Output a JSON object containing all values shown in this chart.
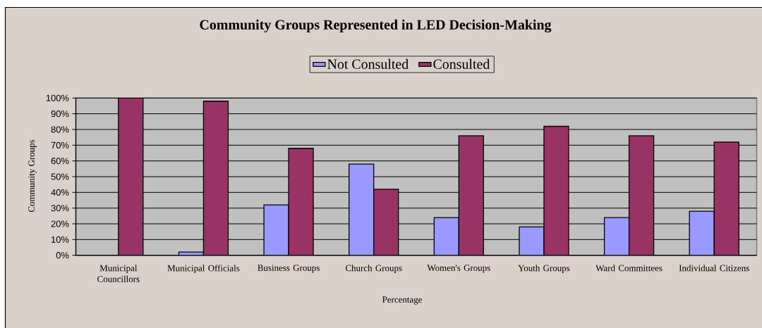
{
  "chart_data": {
    "type": "bar",
    "title": "Community Groups Represented in LED Decision-Making",
    "xlabel": "Percentage",
    "ylabel": "Community Groups",
    "categories": [
      "Municipal Councillors",
      "Municipal Officials",
      "Business Groups",
      "Church Groups",
      "Women's Groups",
      "Youth Groups",
      "Ward Committees",
      "Individual Citizens"
    ],
    "series": [
      {
        "name": "Not Consulted",
        "color": "#9999ff",
        "values": [
          0,
          2,
          32,
          58,
          24,
          18,
          24,
          28
        ]
      },
      {
        "name": "Consulted",
        "color": "#993366",
        "values": [
          100,
          98,
          68,
          42,
          76,
          82,
          76,
          72
        ]
      }
    ],
    "ylim": [
      0,
      100
    ],
    "yticks": [
      {
        "value": 0,
        "label": "0%"
      },
      {
        "value": 10,
        "label": "10%"
      },
      {
        "value": 20,
        "label": "20%"
      },
      {
        "value": 30,
        "label": "30%"
      },
      {
        "value": 40,
        "label": "40%"
      },
      {
        "value": 50,
        "label": "50%"
      },
      {
        "value": 60,
        "label": "60%"
      },
      {
        "value": 70,
        "label": "70%"
      },
      {
        "value": 80,
        "label": "80%"
      },
      {
        "value": 90,
        "label": "90%"
      },
      {
        "value": 100,
        "label": "100%"
      }
    ],
    "grid": "y",
    "legend": "top"
  }
}
